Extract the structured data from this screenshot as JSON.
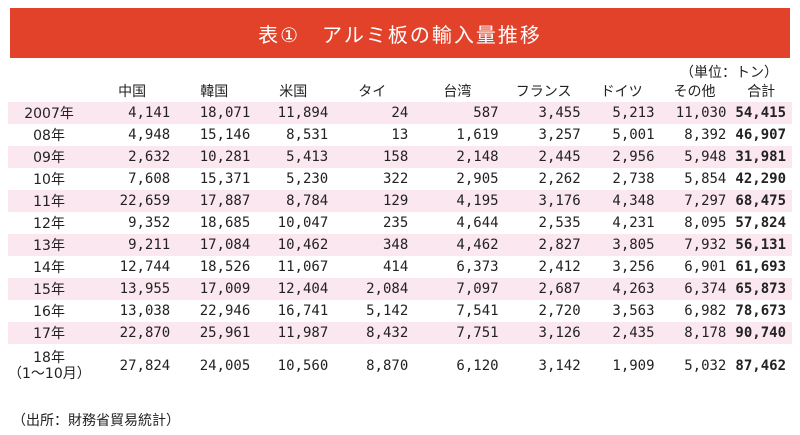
{
  "title": "表①　アルミ板の輸入量推移",
  "unit_note": "（単位：トン）",
  "columns": [
    "",
    "中国",
    "韓国",
    "米国",
    "タイ",
    "台湾",
    "フランス",
    "ドイツ",
    "その他",
    "合計"
  ],
  "rows": [
    {
      "year": "2007年",
      "values": [
        "4,141",
        "18,071",
        "11,894",
        "24",
        "587",
        "3,455",
        "5,213",
        "11,030",
        "54,415"
      ]
    },
    {
      "year": "08年",
      "values": [
        "4,948",
        "15,146",
        "8,531",
        "13",
        "1,619",
        "3,257",
        "5,001",
        "8,392",
        "46,907"
      ]
    },
    {
      "year": "09年",
      "values": [
        "2,632",
        "10,281",
        "5,413",
        "158",
        "2,148",
        "2,445",
        "2,956",
        "5,948",
        "31,981"
      ]
    },
    {
      "year": "10年",
      "values": [
        "7,608",
        "15,371",
        "5,230",
        "322",
        "2,905",
        "2,262",
        "2,738",
        "5,854",
        "42,290"
      ]
    },
    {
      "year": "11年",
      "values": [
        "22,659",
        "17,887",
        "8,784",
        "129",
        "4,195",
        "3,176",
        "4,348",
        "7,297",
        "68,475"
      ]
    },
    {
      "year": "12年",
      "values": [
        "9,352",
        "18,685",
        "10,047",
        "235",
        "4,644",
        "2,535",
        "4,231",
        "8,095",
        "57,824"
      ]
    },
    {
      "year": "13年",
      "values": [
        "9,211",
        "17,084",
        "10,462",
        "348",
        "4,462",
        "2,827",
        "3,805",
        "7,932",
        "56,131"
      ]
    },
    {
      "year": "14年",
      "values": [
        "12,744",
        "18,526",
        "11,067",
        "414",
        "6,373",
        "2,412",
        "3,256",
        "6,901",
        "61,693"
      ]
    },
    {
      "year": "15年",
      "values": [
        "13,955",
        "17,009",
        "12,404",
        "2,084",
        "7,097",
        "2,687",
        "4,263",
        "6,374",
        "65,873"
      ]
    },
    {
      "year": "16年",
      "values": [
        "13,038",
        "22,946",
        "16,741",
        "5,142",
        "7,541",
        "2,720",
        "3,563",
        "6,982",
        "78,673"
      ]
    },
    {
      "year": "17年",
      "values": [
        "22,870",
        "25,961",
        "11,987",
        "8,432",
        "7,751",
        "3,126",
        "2,435",
        "8,178",
        "90,740"
      ]
    },
    {
      "year": "18年",
      "year_sub": "（1～10月）",
      "values": [
        "27,824",
        "24,005",
        "10,560",
        "8,870",
        "6,120",
        "3,142",
        "1,909",
        "5,032",
        "87,462"
      ]
    }
  ],
  "source": "（出所：財務省貿易統計）"
}
